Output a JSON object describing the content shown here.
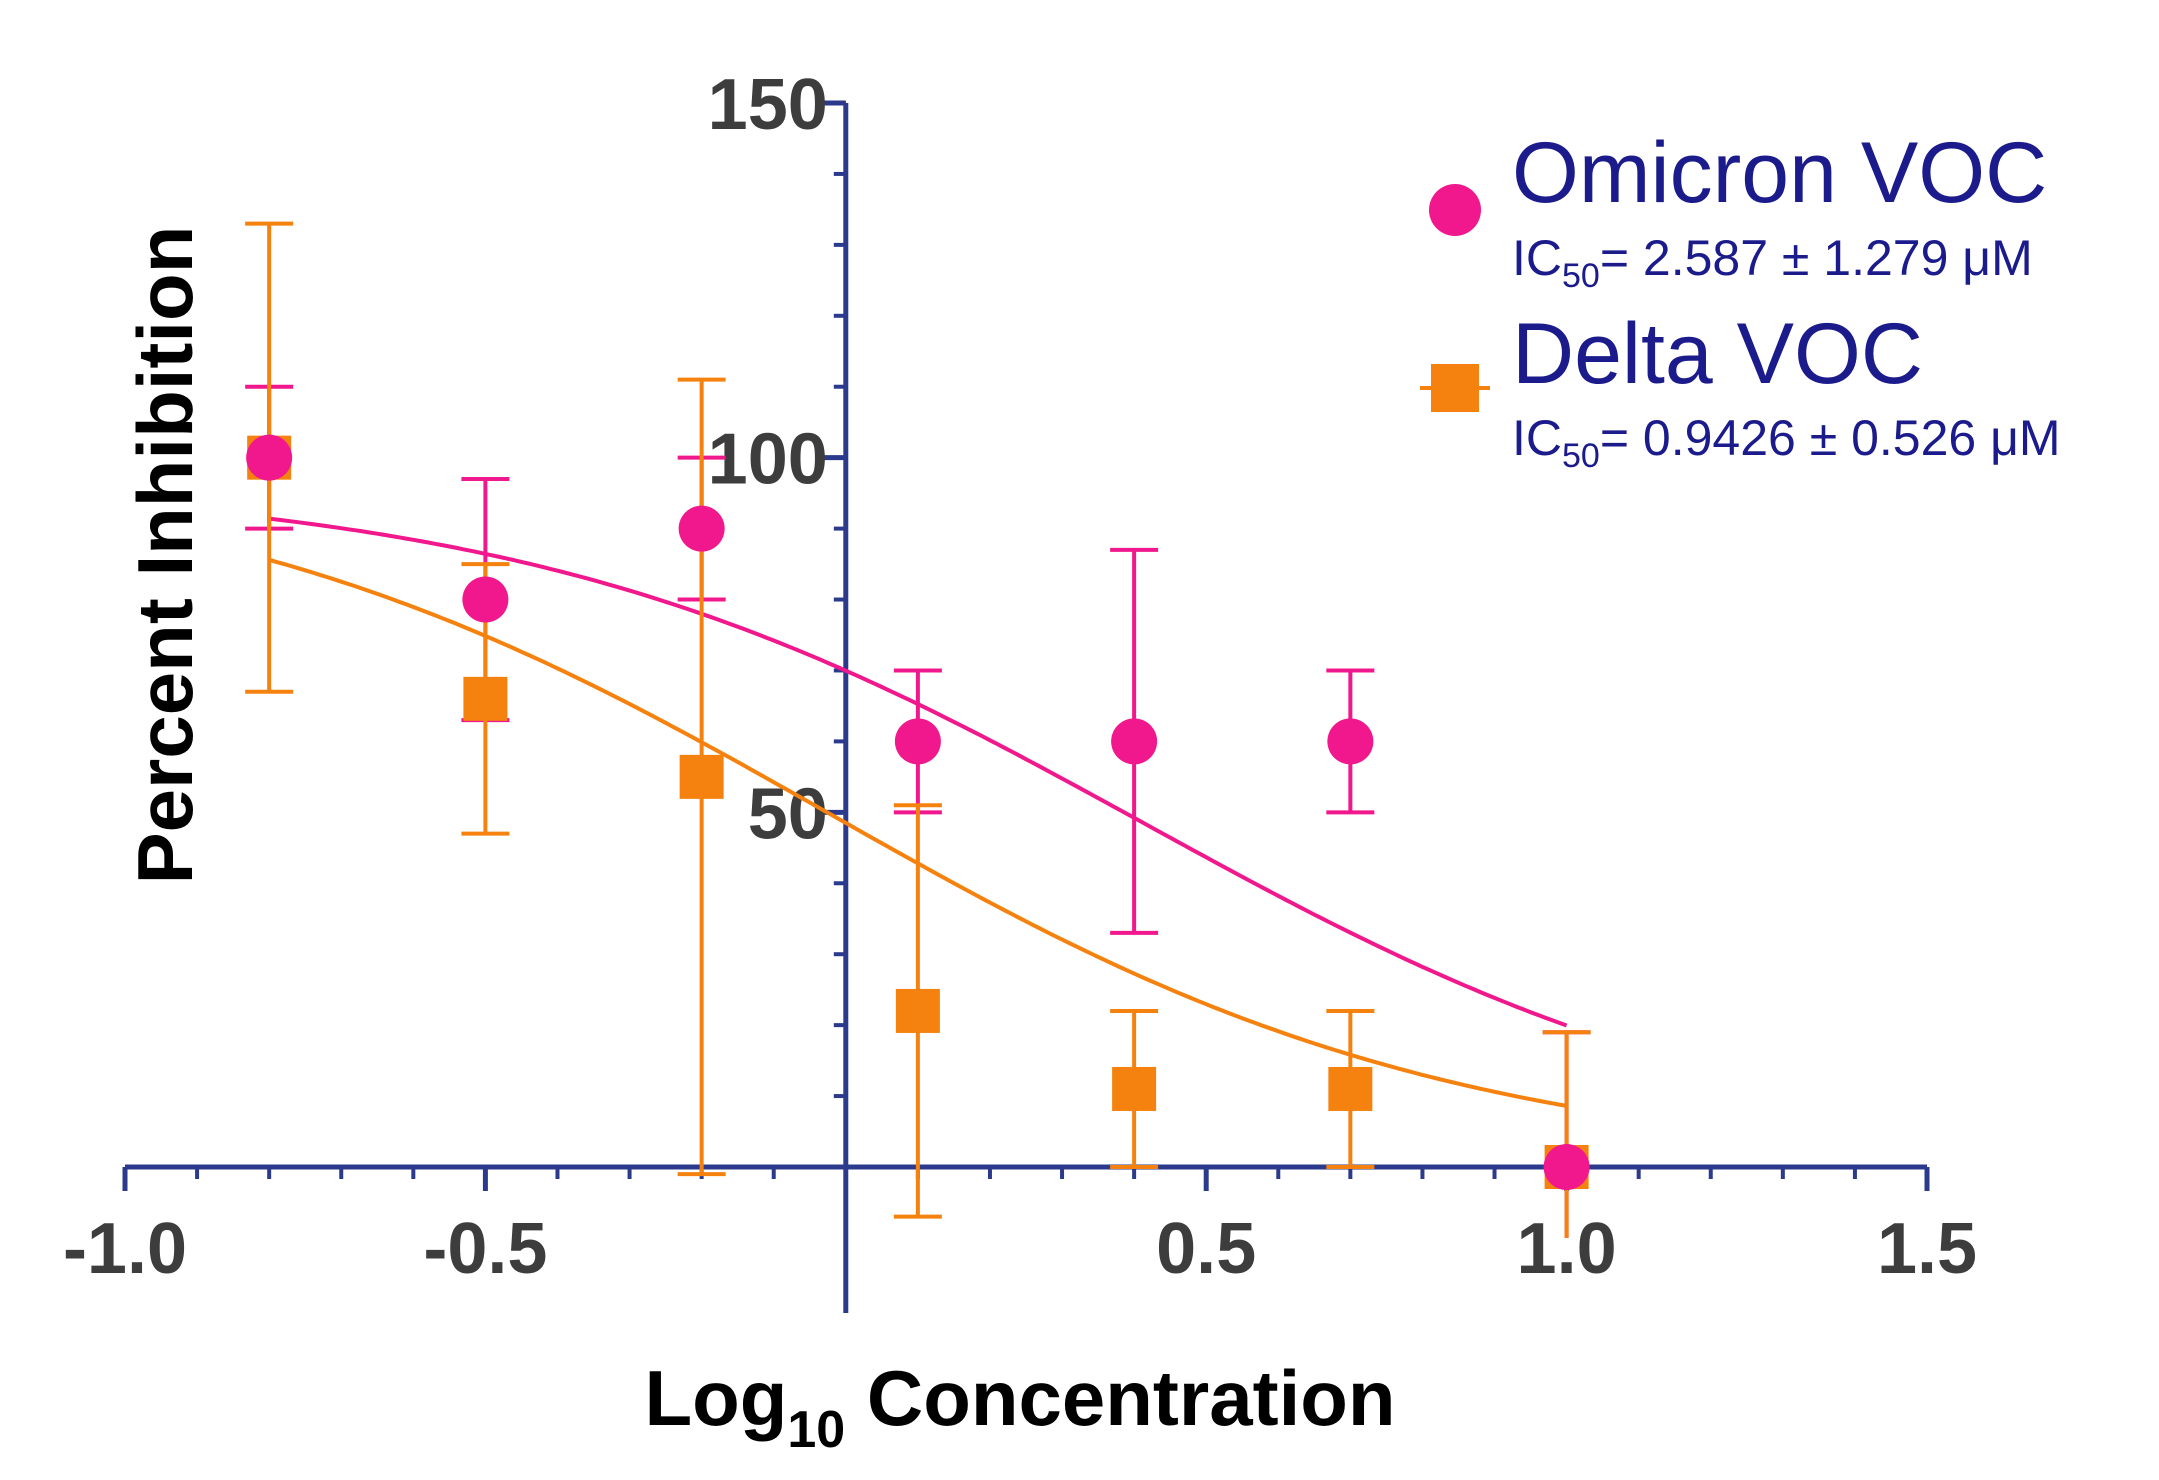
{
  "chart_data": {
    "type": "scatter",
    "title": "",
    "xlabel": "Log10 Concentration",
    "xlabel_main": "Log",
    "xlabel_sub": "10",
    "xlabel_rest": " Concentration",
    "ylabel": "Percent Inhibition",
    "xlim": [
      -1.0,
      1.5
    ],
    "ylim": [
      0,
      150
    ],
    "x_ticks": [
      -1.0,
      -0.5,
      0.5,
      1.0,
      1.5
    ],
    "x_tick_labels": [
      "-1.0",
      "-0.5",
      "0.5",
      "1.0",
      "1.5"
    ],
    "y_ticks": [
      50,
      100,
      150
    ],
    "y_tick_labels": [
      "50",
      "100",
      "150"
    ],
    "x_minor_step": 0.1,
    "y_minor_step": 10,
    "legend_position": "top-right",
    "axis_color": "#2b3a8c",
    "series": [
      {
        "name": "Omicron VOC",
        "ic50_text": "= 2.587 ± 1.279 μM",
        "ic50_prefix": "IC",
        "ic50_sub": "50",
        "marker": "circle",
        "color": "#f0188c",
        "points": [
          {
            "x": -0.8,
            "y": 100,
            "err": 10
          },
          {
            "x": -0.5,
            "y": 80,
            "err": 17
          },
          {
            "x": -0.2,
            "y": 90,
            "err": 10
          },
          {
            "x": 0.1,
            "y": 60,
            "err": 10
          },
          {
            "x": 0.4,
            "y": 60,
            "err": 27
          },
          {
            "x": 0.7,
            "y": 60,
            "err": 10
          },
          {
            "x": 1.0,
            "y": 0,
            "err": 19
          }
        ],
        "fit": {
          "top": 97,
          "bottom": 0,
          "log_ic50": 0.413,
          "hill": 1.0,
          "x_range": [
            -0.8,
            1.0
          ]
        }
      },
      {
        "name": "Delta VOC",
        "ic50_text": "= 0.9426 ± 0.526 μM",
        "ic50_prefix": "IC",
        "ic50_sub": "50",
        "marker": "square",
        "color": "#f5820f",
        "points": [
          {
            "x": -0.8,
            "y": 100,
            "err": 33
          },
          {
            "x": -0.5,
            "y": 66,
            "err": 19
          },
          {
            "x": -0.2,
            "y": 55,
            "err": 56
          },
          {
            "x": 0.1,
            "y": 22,
            "err": 29
          },
          {
            "x": 0.4,
            "y": 11,
            "err": 11
          },
          {
            "x": 0.7,
            "y": 11,
            "err": 11
          },
          {
            "x": 1.0,
            "y": 0,
            "err": 19
          }
        ],
        "fit": {
          "top": 100,
          "bottom": 0,
          "log_ic50": -0.026,
          "hill": 1.0,
          "x_range": [
            -0.8,
            1.0
          ]
        }
      }
    ]
  }
}
